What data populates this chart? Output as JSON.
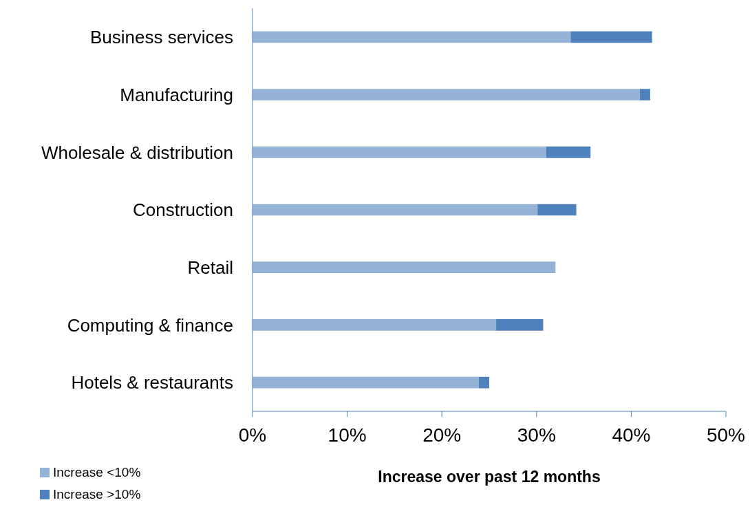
{
  "chart_data": {
    "type": "bar",
    "orientation": "horizontal",
    "stacked": true,
    "xlabel": "Increase over past 12 months",
    "categories": [
      "Business services",
      "Manufacturing",
      "Wholesale & distribution",
      "Construction",
      "Retail",
      "Computing & finance",
      "Hotels & restaurants"
    ],
    "series": [
      {
        "name": "Increase <10%",
        "color": "#95b3d7",
        "values": [
          33.6,
          40.9,
          31.0,
          30.1,
          32.0,
          25.7,
          23.9
        ]
      },
      {
        "name": "Increase >10%",
        "color": "#4f81bd",
        "values": [
          8.6,
          1.1,
          4.7,
          4.1,
          0,
          5.0,
          1.1
        ]
      }
    ],
    "xlim": [
      0,
      50
    ],
    "xticks": [
      {
        "value": 0,
        "label": "0%"
      },
      {
        "value": 10,
        "label": "10%"
      },
      {
        "value": 20,
        "label": "20%"
      },
      {
        "value": 30,
        "label": "30%"
      },
      {
        "value": 40,
        "label": "40%"
      },
      {
        "value": 50,
        "label": "50%"
      }
    ],
    "grid": false,
    "legend": "bottom left"
  }
}
